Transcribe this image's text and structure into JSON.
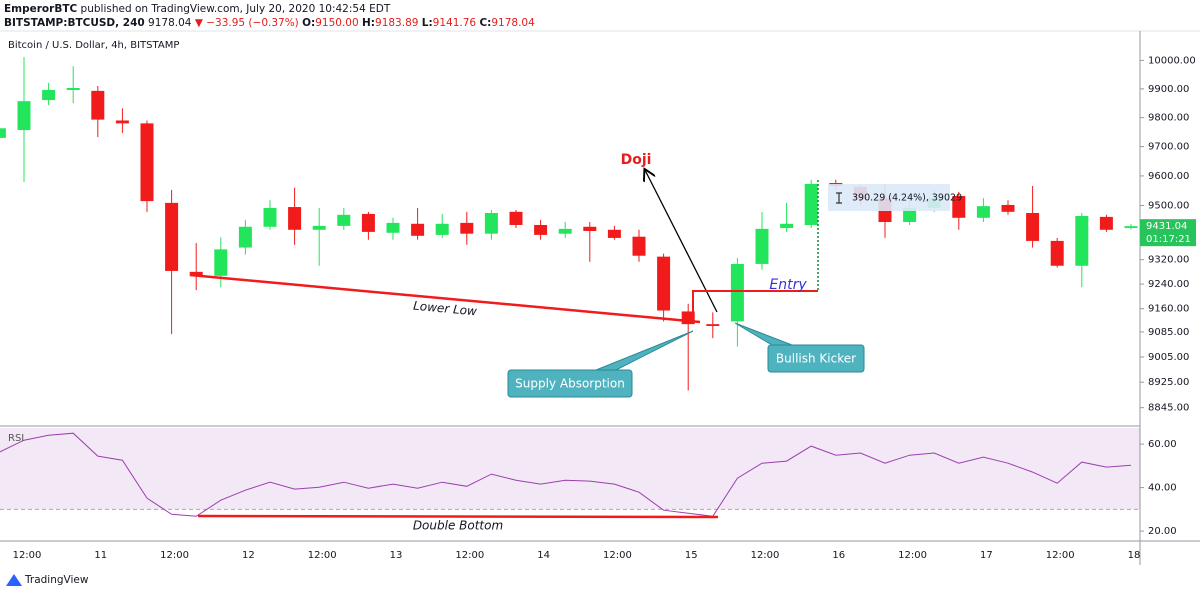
{
  "header": {
    "author": "EmperorBTC",
    "published": "published on TradingView.com, July 20, 2020 10:42:54 EDT",
    "symbol": "BITSTAMP:BTCUSD, 240",
    "price": "9178.04",
    "change": "▼ −33.95 (−0.37%)",
    "ohlc": [
      {
        "label": "O:",
        "value": "9150.00"
      },
      {
        "label": "H:",
        "value": "9183.89"
      },
      {
        "label": "L:",
        "value": "9141.76"
      },
      {
        "label": "C:",
        "value": "9178.04"
      }
    ]
  },
  "footer": {
    "brand": "TradingView"
  },
  "chart_data": {
    "type": "candlestick",
    "title": "Bitcoin / U.S. Dollar, 4h, BITSTAMP",
    "categories": [
      null,
      "12:00",
      null,
      null,
      "11",
      null,
      null,
      "12:00",
      null,
      null,
      "12",
      null,
      null,
      "12:00",
      null,
      null,
      "13",
      null,
      null,
      "12:00",
      null,
      null,
      "14",
      null,
      null,
      "12:00",
      null,
      null,
      "15",
      null,
      null,
      "12:00",
      null,
      null,
      "16",
      null,
      null,
      "12:00",
      null,
      null,
      "17",
      null,
      null,
      "12:00",
      null,
      null,
      "18"
    ],
    "open": [
      9730,
      9757,
      9861,
      9896,
      9893,
      9790,
      9780,
      9509,
      9280,
      9267,
      9360,
      9429,
      9495,
      9419,
      9432,
      9472,
      9409,
      9439,
      9402,
      9442,
      9406,
      9479,
      9435,
      9406,
      9429,
      9419,
      9396,
      9330,
      9151,
      9110,
      9119,
      9306,
      9425,
      9435,
      9576,
      9563,
      9525,
      9445,
      9492,
      9532,
      9459,
      9502,
      9475,
      9382,
      9300,
      9462,
      9425
    ],
    "high": [
      9768,
      10012,
      9921,
      9980,
      9910,
      9832,
      9790,
      9553,
      9375,
      9394,
      9452,
      9518,
      9560,
      9492,
      9492,
      9479,
      9459,
      9492,
      9472,
      9479,
      9485,
      9485,
      9452,
      9445,
      9445,
      9432,
      9419,
      9340,
      9176,
      9148,
      9326,
      9479,
      9509,
      9587,
      9587,
      9570,
      9570,
      9535,
      9553,
      9546,
      9525,
      9518,
      9566,
      9392,
      9475,
      9469,
      9438
    ],
    "low": [
      9725,
      9580,
      9843,
      9850,
      9733,
      9747,
      9479,
      9078,
      9220,
      9230,
      9337,
      9419,
      9369,
      9300,
      9419,
      9386,
      9386,
      9386,
      9392,
      9369,
      9386,
      9425,
      9386,
      9392,
      9313,
      9386,
      9313,
      9119,
      8899,
      9065,
      9038,
      9287,
      9412,
      9425,
      9553,
      9502,
      9392,
      9435,
      9479,
      9419,
      9445,
      9469,
      9360,
      9294,
      9230,
      9412,
      9420
    ],
    "close": [
      9763,
      9857,
      9896,
      9903,
      9793,
      9780,
      9515,
      9283,
      9267,
      9354,
      9429,
      9492,
      9419,
      9432,
      9469,
      9412,
      9442,
      9399,
      9439,
      9406,
      9475,
      9435,
      9402,
      9422,
      9415,
      9392,
      9333,
      9154,
      9110,
      9104,
      9306,
      9422,
      9439,
      9573,
      9566,
      9522,
      9445,
      9492,
      9525,
      9459,
      9498,
      9479,
      9382,
      9300,
      9465,
      9419,
      9431.04
    ],
    "up_color": "#22e55b",
    "down_color": "#f21b1b",
    "ylim": [
      8791,
      10101
    ],
    "log_scale": true,
    "yticks": [
      {
        "value": 10000,
        "label": "10000.00"
      },
      {
        "value": 9900,
        "label": "9900.00"
      },
      {
        "value": 9800,
        "label": "9800.00"
      },
      {
        "value": 9700,
        "label": "9700.00"
      },
      {
        "value": 9600,
        "label": "9600.00"
      },
      {
        "value": 9500,
        "label": "9500.00"
      },
      {
        "value": 9320,
        "label": "9320.00"
      },
      {
        "value": 9240,
        "label": "9240.00"
      },
      {
        "value": 9160,
        "label": "9160.00"
      },
      {
        "value": 9085,
        "label": "9085.00"
      },
      {
        "value": 9005,
        "label": "9005.00"
      },
      {
        "value": 8925,
        "label": "8925.00"
      },
      {
        "value": 8845,
        "label": "8845.00"
      }
    ],
    "last_price": 9431.04,
    "countdown": "01:17:21",
    "annotations": {
      "doji": "Doji",
      "lower_low": "Lower Low",
      "supply_absorption": "Supply Absorption",
      "bullish_kicker": "Bullish Kicker",
      "entry": "Entry",
      "double_bottom": "Double Bottom",
      "measure": "390.29 (4.24%), 39029"
    },
    "rsi": {
      "name": "RSI",
      "color": "#9c3fb0",
      "values": [
        56.3,
        61.8,
        64.1,
        65,
        54.5,
        52.6,
        35.1,
        27.7,
        26.8,
        34.2,
        38.8,
        42.5,
        39.3,
        40.2,
        42.5,
        39.7,
        41.6,
        39.7,
        42.5,
        40.6,
        46.2,
        43.4,
        41.6,
        43.4,
        43,
        41.6,
        37.9,
        29.6,
        28.2,
        26.8,
        44.3,
        51.2,
        52.2,
        59.1,
        54.9,
        55.9,
        51.2,
        54.9,
        55.9,
        51.2,
        54,
        51.2,
        47.1,
        42,
        51.7,
        49.4,
        50.3
      ],
      "ylim": [
        15.9,
        67.4
      ],
      "band": [
        30,
        70
      ],
      "yticks": [
        {
          "value": 60,
          "label": "60.00"
        },
        {
          "value": 40,
          "label": "40.00"
        },
        {
          "value": 20,
          "label": "20.00"
        }
      ]
    }
  }
}
